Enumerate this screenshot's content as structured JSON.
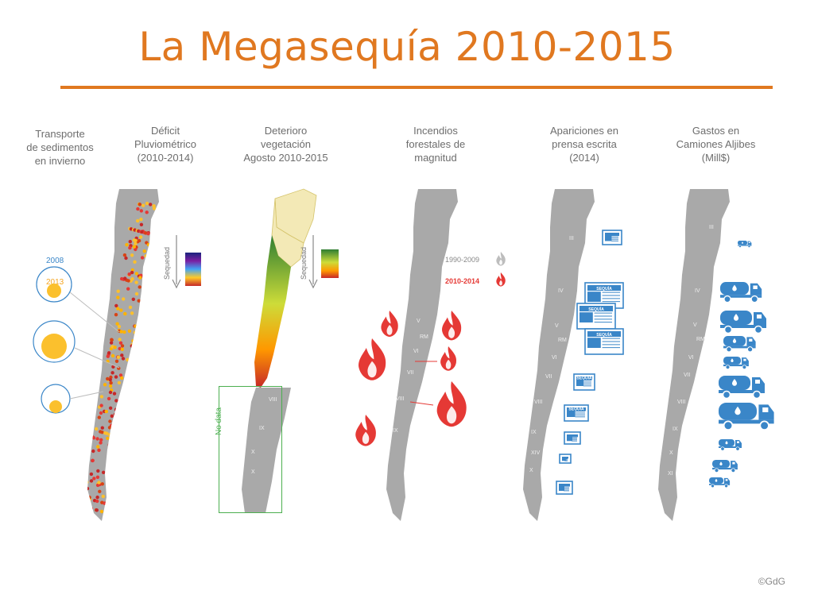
{
  "title": "La Megasequía 2010-2015",
  "columns": [
    {
      "lines": [
        "Transporte",
        "de sedimentos",
        "en invierno"
      ]
    },
    {
      "lines": [
        "Déficit",
        "Pluviométrico",
        "(2010-2014)"
      ]
    },
    {
      "lines": [
        "Deterioro",
        "vegetación",
        "Agosto 2010-2015"
      ]
    },
    {
      "lines": [
        "Incendios",
        "forestales de",
        "magnitud"
      ]
    },
    {
      "lines": [
        "Apariciones en",
        "prensa escrita",
        "(2014)"
      ]
    },
    {
      "lines": [
        "Gastos en",
        "Camiones Aljibes",
        "(Mill$)"
      ]
    }
  ],
  "sediment_legend": {
    "year_a": "2008",
    "year_b": "2013"
  },
  "sequedad_label": "Sequedad",
  "no_data_label": "No data",
  "fire_legend": {
    "older": "1990-2009",
    "recent": "2010-2014"
  },
  "region_labels": {
    "fire": [
      "V",
      "RM",
      "VI",
      "VII",
      "VIII",
      "IX"
    ],
    "press": [
      "III",
      "IV",
      "V",
      "RM",
      "VI",
      "VII",
      "VIII",
      "IX",
      "XIV",
      "X"
    ],
    "trucks": [
      "III",
      "IV",
      "V",
      "RM",
      "VI",
      "VII",
      "VIII",
      "IX",
      "X",
      "XI"
    ],
    "veg_south": [
      "VIII",
      "IX",
      "X",
      "X"
    ]
  },
  "press_label": "SEQUÍA",
  "copyright": "©GdG",
  "colors": {
    "accent": "#E07820",
    "map_gray": "#a9a9a9",
    "fire": "#e53935",
    "press": "#3a86c8",
    "no_data_box": "#4caf50"
  }
}
